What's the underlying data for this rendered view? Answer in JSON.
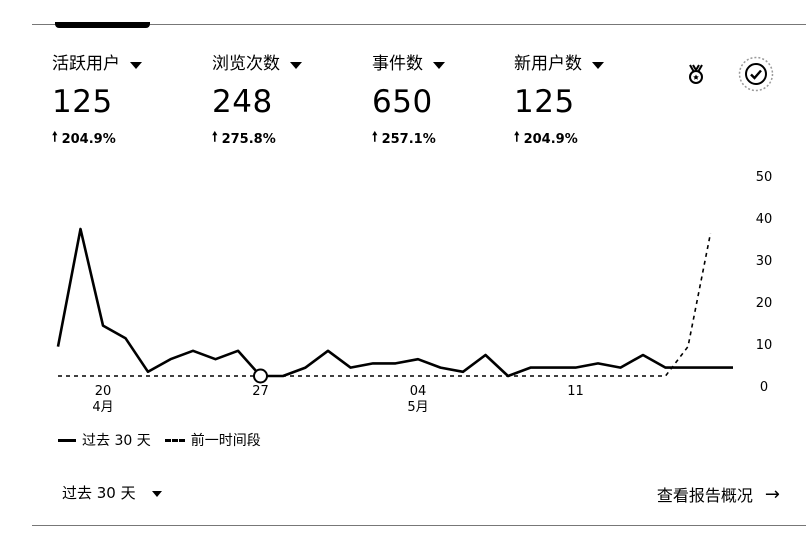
{
  "metrics": [
    {
      "label": "活跃用户",
      "value": "125",
      "change": "204.9%"
    },
    {
      "label": "浏览次数",
      "value": "248",
      "change": "275.8%"
    },
    {
      "label": "事件数",
      "value": "650",
      "change": "257.1%"
    },
    {
      "label": "新用户数",
      "value": "125",
      "change": "204.9%"
    }
  ],
  "icons": {
    "insights": "medal-icon",
    "compare": "check-circle-icon"
  },
  "legend": {
    "current": "过去 30 天",
    "previous": "前一时间段"
  },
  "footer": {
    "range_label": "过去 30 天",
    "link_label": "查看报告概况"
  },
  "chart_data": {
    "type": "line",
    "y_ticks": [
      "0",
      "10",
      "20",
      "30",
      "40",
      "50"
    ],
    "ylim": [
      0,
      50
    ],
    "x_tick_labels": [
      {
        "day": "20",
        "month": "4月"
      },
      {
        "day": "27",
        "month": ""
      },
      {
        "day": "04",
        "month": "5月"
      },
      {
        "day": "11",
        "month": ""
      }
    ],
    "series": [
      {
        "name": "过去 30 天",
        "style": "solid",
        "values": [
          7,
          35,
          12,
          9,
          1,
          4,
          6,
          4,
          6,
          0,
          0,
          2,
          6,
          2,
          3,
          3,
          4,
          2,
          1,
          5,
          0,
          2,
          2,
          2,
          3,
          2,
          5,
          2,
          2,
          2,
          2
        ]
      },
      {
        "name": "前一时间段",
        "style": "dashed",
        "values": [
          0,
          0,
          0,
          0,
          0,
          0,
          0,
          0,
          0,
          0,
          0,
          0,
          0,
          0,
          0,
          0,
          0,
          0,
          0,
          0,
          0,
          0,
          0,
          0,
          0,
          0,
          0,
          0,
          7,
          34
        ]
      }
    ],
    "highlight_index": 9,
    "grid": false
  }
}
